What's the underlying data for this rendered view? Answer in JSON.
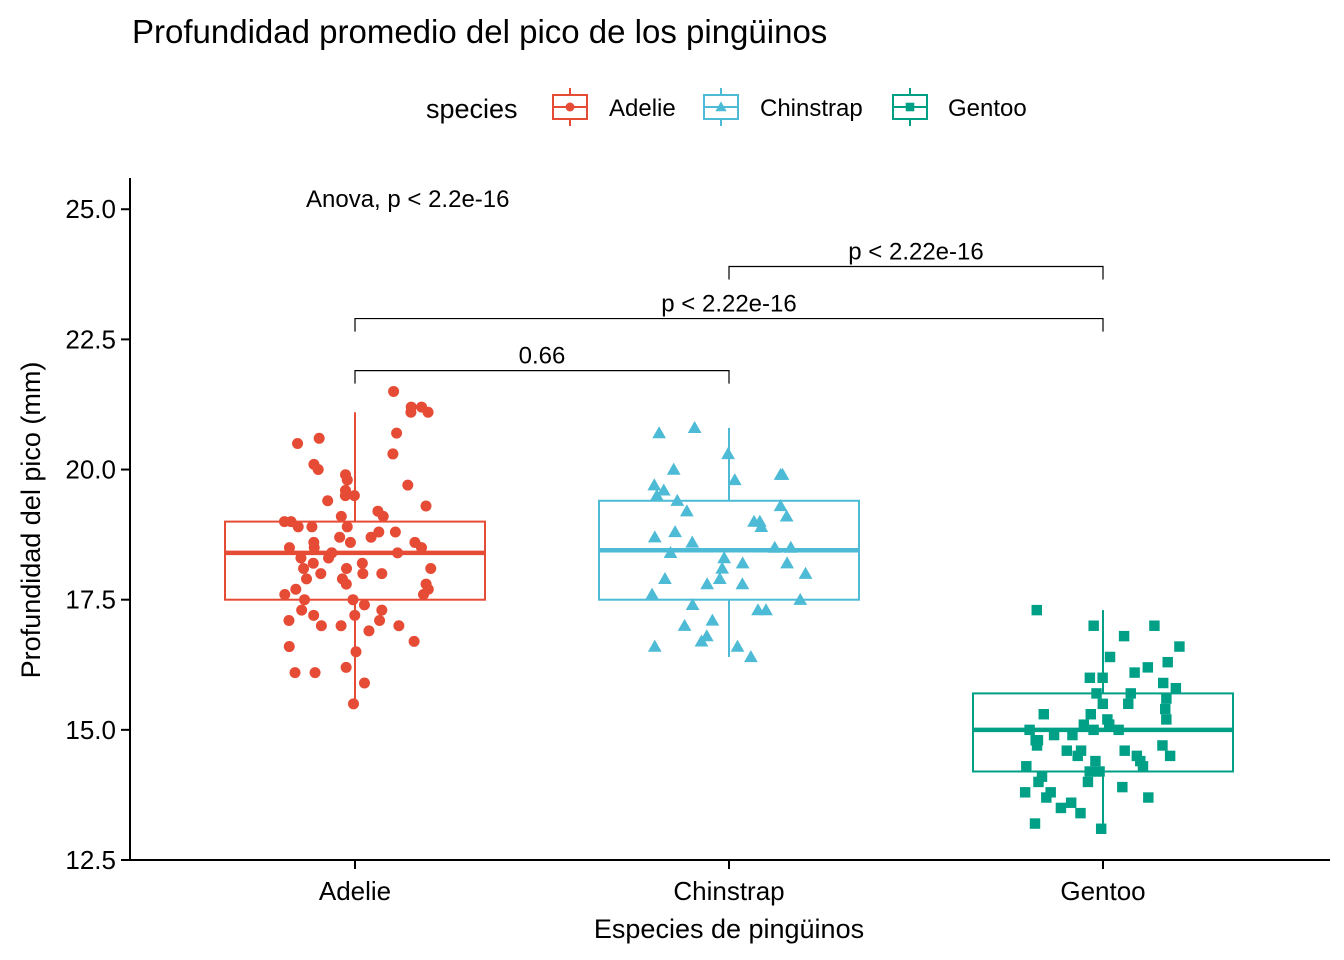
{
  "chart_data": {
    "type": "boxplot",
    "title": "Profundidad promedio del pico de los pingüinos",
    "xlabel": "Especies de pingüinos",
    "ylabel": "Profundidad del pico (mm)",
    "ylim": [
      12.5,
      25.6
    ],
    "yticks": [
      "12.5",
      "15.0",
      "17.5",
      "20.0",
      "22.5",
      "25.0"
    ],
    "grid": false,
    "legend": {
      "title": "species",
      "position": "top",
      "entries": [
        "Adelie",
        "Chinstrap",
        "Gentoo"
      ]
    },
    "categories": [
      "Adelie",
      "Chinstrap",
      "Gentoo"
    ],
    "series": [
      {
        "name": "Adelie",
        "color": "#E64B35",
        "marker": "circle",
        "box": {
          "whisker_low": 15.5,
          "q1": 17.5,
          "median": 18.4,
          "q3": 19.0,
          "whisker_high": 21.1
        },
        "points": [
          15.5,
          15.9,
          16.1,
          16.1,
          16.2,
          16.5,
          16.6,
          16.7,
          16.9,
          17.0,
          17.0,
          17.0,
          17.1,
          17.1,
          17.2,
          17.2,
          17.3,
          17.3,
          17.4,
          17.5,
          17.5,
          17.6,
          17.6,
          17.7,
          17.7,
          17.8,
          17.8,
          17.9,
          17.9,
          18.0,
          18.0,
          18.0,
          18.1,
          18.1,
          18.1,
          18.2,
          18.2,
          18.3,
          18.3,
          18.4,
          18.4,
          18.4,
          18.5,
          18.5,
          18.5,
          18.6,
          18.6,
          18.6,
          18.7,
          18.7,
          18.8,
          18.8,
          18.9,
          18.9,
          18.9,
          19.0,
          19.0,
          19.1,
          19.1,
          19.2,
          19.3,
          19.4,
          19.5,
          19.5,
          19.6,
          19.7,
          19.8,
          19.9,
          20.0,
          20.1,
          20.3,
          20.5,
          20.6,
          20.7,
          21.1,
          21.1,
          21.2,
          21.2,
          21.5
        ]
      },
      {
        "name": "Chinstrap",
        "color": "#4DBBD5",
        "marker": "triangle",
        "box": {
          "whisker_low": 16.4,
          "q1": 17.5,
          "median": 18.45,
          "q3": 19.4,
          "whisker_high": 20.8
        },
        "points": [
          16.4,
          16.6,
          16.6,
          16.7,
          16.8,
          17.0,
          17.1,
          17.3,
          17.3,
          17.4,
          17.5,
          17.6,
          17.8,
          17.8,
          17.9,
          17.9,
          18.0,
          18.1,
          18.2,
          18.2,
          18.3,
          18.4,
          18.5,
          18.5,
          18.6,
          18.7,
          18.8,
          18.9,
          19.0,
          19.0,
          19.1,
          19.2,
          19.3,
          19.4,
          19.5,
          19.6,
          19.7,
          19.8,
          19.9,
          19.9,
          20.0,
          20.3,
          20.7,
          20.8
        ]
      },
      {
        "name": "Gentoo",
        "color": "#00A087",
        "marker": "square",
        "box": {
          "whisker_low": 13.1,
          "q1": 14.2,
          "median": 15.0,
          "q3": 15.7,
          "whisker_high": 17.3
        },
        "points": [
          13.1,
          13.2,
          13.4,
          13.5,
          13.6,
          13.7,
          13.7,
          13.8,
          13.8,
          13.9,
          14.0,
          14.0,
          14.1,
          14.2,
          14.2,
          14.3,
          14.3,
          14.4,
          14.4,
          14.5,
          14.5,
          14.5,
          14.6,
          14.6,
          14.6,
          14.7,
          14.7,
          14.8,
          14.8,
          14.9,
          14.9,
          15.0,
          15.0,
          15.0,
          15.1,
          15.1,
          15.2,
          15.2,
          15.3,
          15.3,
          15.4,
          15.5,
          15.5,
          15.6,
          15.7,
          15.7,
          15.8,
          15.9,
          16.0,
          16.0,
          16.1,
          16.2,
          16.3,
          16.4,
          16.6,
          16.8,
          17.0,
          17.0,
          17.3
        ]
      }
    ],
    "annotations": {
      "anova": "Anova, p < 2.2e-16",
      "comparisons": [
        {
          "from": "Adelie",
          "to": "Chinstrap",
          "y": 21.9,
          "label": "0.66"
        },
        {
          "from": "Adelie",
          "to": "Gentoo",
          "y": 22.9,
          "label": "p < 2.22e-16"
        },
        {
          "from": "Chinstrap",
          "to": "Gentoo",
          "y": 23.9,
          "label": "p < 2.22e-16"
        }
      ]
    }
  }
}
